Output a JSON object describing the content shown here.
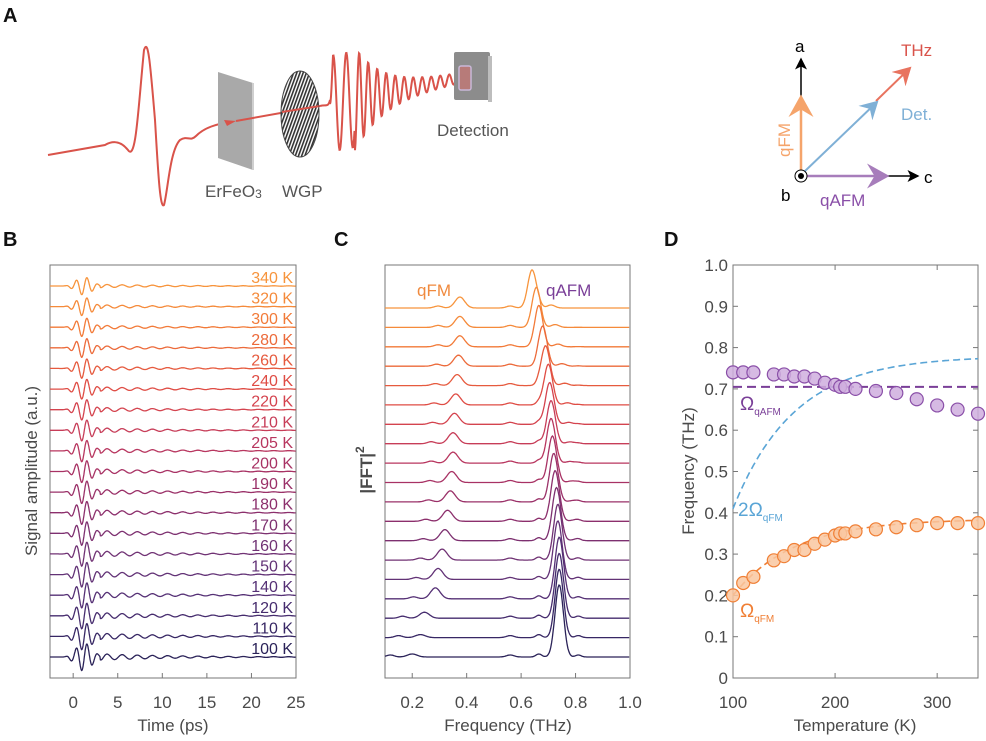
{
  "panel_labels": {
    "a": "A",
    "b": "B",
    "c": "C",
    "d": "D"
  },
  "diagram": {
    "sample_label": "ErFeO",
    "sample_subscript": "3",
    "polarizer_label": "WGP",
    "detector_label": "Detection",
    "axes": {
      "a": "a",
      "b": "b",
      "c": "c",
      "thz": "THz",
      "det": "Det.",
      "qfm": "qFM",
      "qafm": "qAFM"
    },
    "colors": {
      "beam": "#d9534a",
      "thz": "#e8735f",
      "det": "#7fb0d6",
      "qfm": "#f5a46b",
      "qafm": "#a77dbb"
    }
  },
  "chart_data": [
    {
      "id": "B",
      "type": "line",
      "title": "",
      "xlabel": "Time (ps)",
      "ylabel": "Signal amplitude (a.u.)",
      "xlim": [
        -2.6,
        25
      ],
      "xticks": [
        "0",
        "5",
        "10",
        "15",
        "20",
        "25"
      ],
      "xtick_values": [
        0,
        5,
        10,
        15,
        20,
        25
      ],
      "series": [
        {
          "name": "340 K",
          "color": "#f7943c"
        },
        {
          "name": "320 K",
          "color": "#f58a3a"
        },
        {
          "name": "300 K",
          "color": "#f27a38"
        },
        {
          "name": "280 K",
          "color": "#ec6a3a"
        },
        {
          "name": "260 K",
          "color": "#e65a3e"
        },
        {
          "name": "240 K",
          "color": "#df4c44"
        },
        {
          "name": "220 K",
          "color": "#d4434e"
        },
        {
          "name": "210 K",
          "color": "#c73d58"
        },
        {
          "name": "205 K",
          "color": "#b8365f"
        },
        {
          "name": "200 K",
          "color": "#a83264"
        },
        {
          "name": "190 K",
          "color": "#9a3068"
        },
        {
          "name": "180 K",
          "color": "#8c2f6c"
        },
        {
          "name": "170 K",
          "color": "#7d3070"
        },
        {
          "name": "160 K",
          "color": "#703274"
        },
        {
          "name": "150 K",
          "color": "#623276"
        },
        {
          "name": "140 K",
          "color": "#553075"
        },
        {
          "name": "120 K",
          "color": "#462c6e"
        },
        {
          "name": "110 K",
          "color": "#372764"
        },
        {
          "name": "100 K",
          "color": "#2a2258"
        }
      ]
    },
    {
      "id": "C",
      "type": "line",
      "title": "",
      "xlabel": "Frequency (THz)",
      "ylabel": "|FFT|",
      "ylabel_superscript": "2",
      "xlim": [
        0.1,
        1.0
      ],
      "xticks": [
        "0.2",
        "0.4",
        "0.6",
        "0.8",
        "1.0"
      ],
      "xtick_values": [
        0.2,
        0.4,
        0.6,
        0.8,
        1.0
      ],
      "annotations": {
        "qfm": "qFM",
        "qafm": "qAFM",
        "qfm_color": "#f08a3e",
        "qafm_color": "#7a3f98"
      },
      "temperatures_K": [
        340,
        320,
        300,
        280,
        260,
        240,
        220,
        210,
        205,
        200,
        190,
        180,
        170,
        160,
        150,
        140,
        120,
        110,
        100
      ],
      "qfm_peak_THz": [
        0.375,
        0.375,
        0.375,
        0.37,
        0.365,
        0.36,
        0.355,
        0.35,
        0.35,
        0.345,
        0.34,
        0.33,
        0.32,
        0.31,
        0.295,
        0.285,
        0.245,
        0.23,
        0.2
      ],
      "qafm_peak_THz": [
        0.64,
        0.655,
        0.665,
        0.68,
        0.69,
        0.7,
        0.705,
        0.71,
        0.71,
        0.715,
        0.72,
        0.725,
        0.73,
        0.735,
        0.735,
        0.74,
        0.74,
        0.74,
        0.74
      ]
    },
    {
      "id": "D",
      "type": "scatter",
      "title": "",
      "xlabel": "Temperature (K)",
      "ylabel": "Frequency (THz)",
      "xlim": [
        100,
        340
      ],
      "ylim": [
        0,
        1.0
      ],
      "xticks": [
        "100",
        "200",
        "300"
      ],
      "xtick_values": [
        100,
        200,
        300
      ],
      "yticks": [
        "0",
        "0.1",
        "0.2",
        "0.3",
        "0.4",
        "0.5",
        "0.6",
        "0.7",
        "0.8",
        "0.9",
        "1.0"
      ],
      "ytick_values": [
        0,
        0.1,
        0.2,
        0.3,
        0.4,
        0.5,
        0.6,
        0.7,
        0.8,
        0.9,
        1.0
      ],
      "x": [
        100,
        110,
        120,
        140,
        150,
        160,
        170,
        180,
        190,
        200,
        205,
        210,
        220,
        240,
        260,
        280,
        300,
        320,
        340
      ],
      "series": [
        {
          "name": "qAFM",
          "fill": "#cfaede",
          "stroke": "#8a4fa8",
          "values": [
            0.74,
            0.74,
            0.74,
            0.735,
            0.735,
            0.73,
            0.73,
            0.725,
            0.715,
            0.71,
            0.705,
            0.705,
            0.7,
            0.695,
            0.69,
            0.675,
            0.66,
            0.65,
            0.64
          ]
        },
        {
          "name": "qFM",
          "fill": "#f9c7a0",
          "stroke": "#f07f35",
          "values": [
            0.2,
            0.23,
            0.245,
            0.285,
            0.295,
            0.31,
            0.31,
            0.325,
            0.335,
            0.345,
            0.35,
            0.35,
            0.355,
            0.36,
            0.365,
            0.37,
            0.375,
            0.375,
            0.375
          ]
        }
      ],
      "omega_qafm_level": 0.705,
      "curve_labels": {
        "omega_qafm": "Ω",
        "omega_qafm_sub": "qAFM",
        "omega_qafm_color": "#7a3f98",
        "two_omega_qfm": "2Ω",
        "two_omega_qfm_sub": "qFM",
        "two_omega_qfm_color": "#5aa5d6",
        "omega_qfm": "Ω",
        "omega_qfm_sub": "qFM",
        "omega_qfm_color": "#f07f35"
      }
    }
  ]
}
